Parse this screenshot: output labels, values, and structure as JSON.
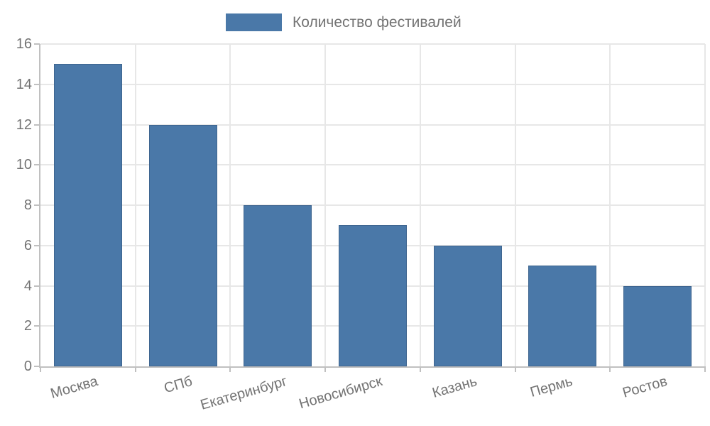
{
  "chart_data": {
    "type": "bar",
    "title": "",
    "xlabel": "",
    "ylabel": "",
    "legend": {
      "label": "Количество фестивалей",
      "position": "top-center"
    },
    "categories": [
      "Москва",
      "СПб",
      "Екатеринбург",
      "Новосибирск",
      "Казань",
      "Пермь",
      "Ростов"
    ],
    "series": [
      {
        "name": "Количество фестивалей",
        "values": [
          15,
          12,
          8,
          7,
          6,
          5,
          4
        ]
      }
    ],
    "ylim": [
      0,
      16
    ],
    "yticks": [
      0,
      2,
      4,
      6,
      8,
      10,
      12,
      14,
      16
    ],
    "grid": true,
    "x_tick_label_rotation_deg": -16,
    "colors": {
      "bar": "#4a78a8",
      "bar_edge": "#3e658f",
      "grid": "#e7e7e7",
      "axis": "#c0c0c0",
      "text": "#737373",
      "background": "#ffffff"
    }
  }
}
